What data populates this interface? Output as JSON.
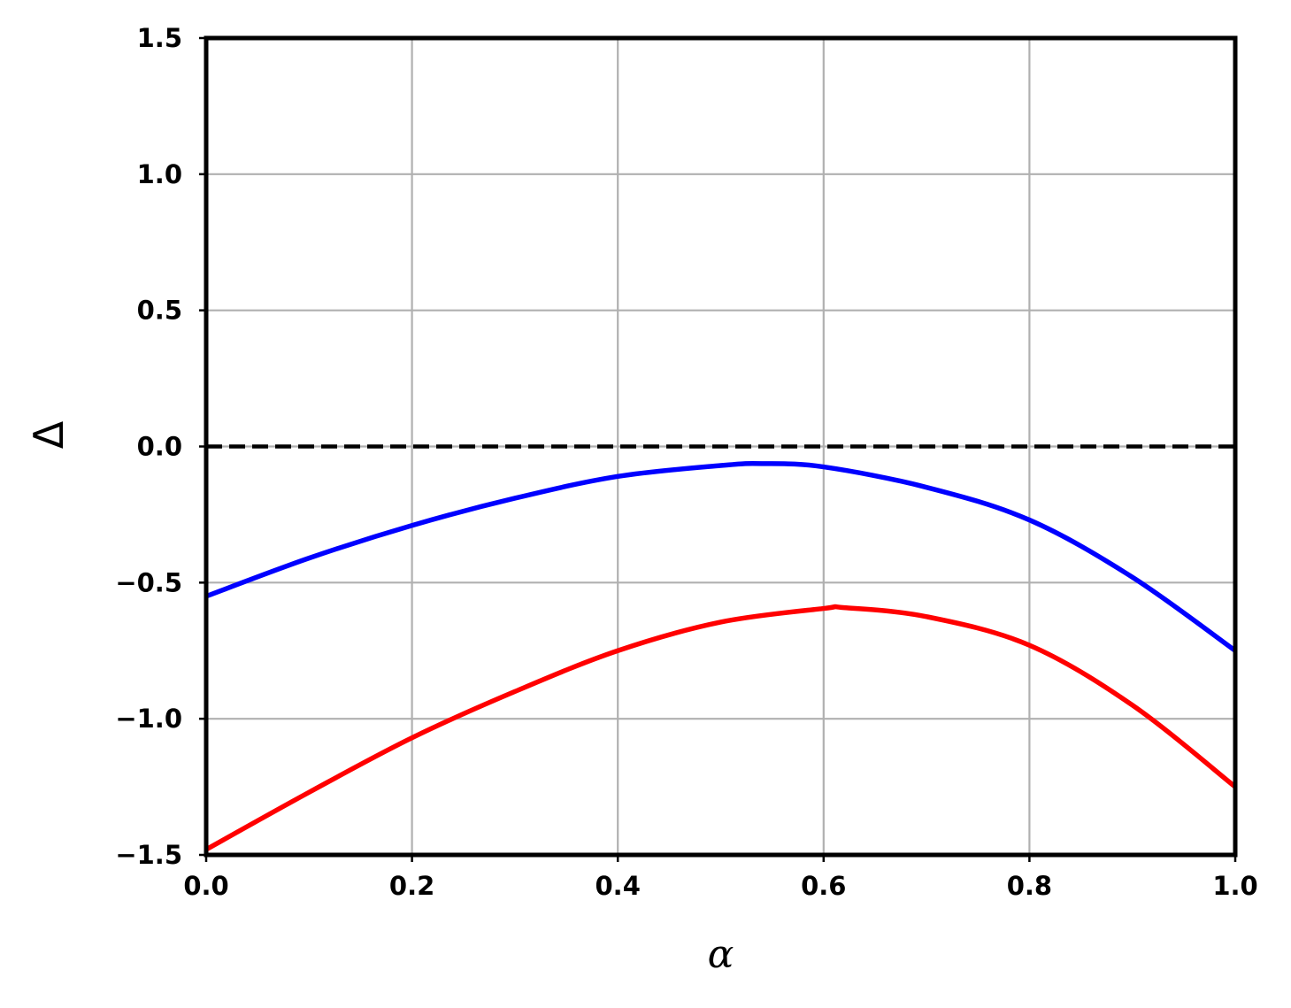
{
  "chart_data": {
    "type": "line",
    "title": "",
    "xlabel": "α",
    "ylabel": "Δ",
    "xlim": [
      0.0,
      1.0
    ],
    "ylim": [
      -1.5,
      1.5
    ],
    "grid": true,
    "x_ticks": [
      "0.0",
      "0.2",
      "0.4",
      "0.6",
      "0.8",
      "1.0"
    ],
    "y_ticks": [
      "−1.5",
      "−1.0",
      "−0.5",
      "0.0",
      "0.5",
      "1.0",
      "1.5"
    ],
    "x_tick_values": [
      0.0,
      0.2,
      0.4,
      0.6,
      0.8,
      1.0
    ],
    "y_tick_values": [
      -1.5,
      -1.0,
      -0.5,
      0.0,
      0.5,
      1.0,
      1.5
    ],
    "reference_line": {
      "y": 0.0,
      "style": "dashed",
      "color": "#000000"
    },
    "series": [
      {
        "color": "#0000ff",
        "x": [
          0.0,
          0.1,
          0.2,
          0.3,
          0.4,
          0.5,
          0.54,
          0.6,
          0.7,
          0.8,
          0.9,
          1.0
        ],
        "values": [
          -0.55,
          -0.41,
          -0.29,
          -0.19,
          -0.11,
          -0.07,
          -0.063,
          -0.075,
          -0.15,
          -0.27,
          -0.48,
          -0.75
        ]
      },
      {
        "color": "#ff0000",
        "x": [
          0.0,
          0.1,
          0.2,
          0.3,
          0.4,
          0.5,
          0.6,
          0.62,
          0.7,
          0.8,
          0.9,
          1.0
        ],
        "values": [
          -1.48,
          -1.27,
          -1.07,
          -0.9,
          -0.75,
          -0.645,
          -0.595,
          -0.592,
          -0.625,
          -0.73,
          -0.95,
          -1.25
        ]
      }
    ]
  }
}
